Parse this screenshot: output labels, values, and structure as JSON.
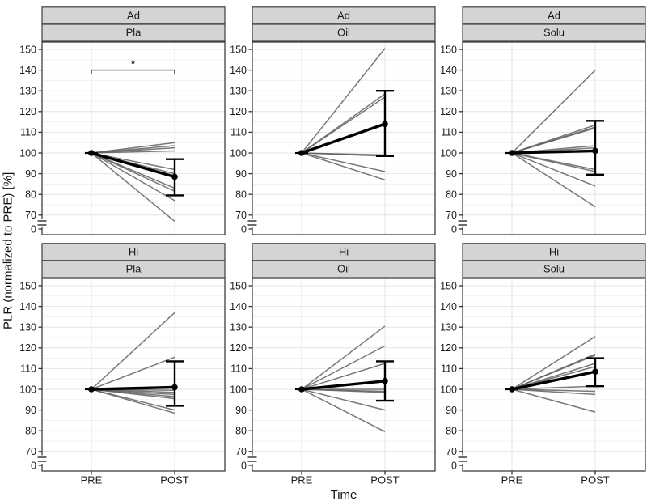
{
  "figure": {
    "y_axis_title": "PLR (normalized to PRE) [%]",
    "x_axis_title": "Time",
    "x_categories": [
      "PRE",
      "POST"
    ],
    "y_ticks": [
      "150",
      "140",
      "130",
      "120",
      "110",
      "100",
      "90",
      "80",
      "70",
      "0"
    ],
    "colors": {
      "strip_bg": "#d4d4d4",
      "strip_border": "#3f3f3f",
      "panel_border": "#3f3f3f",
      "grid_major": "#e4e4e4",
      "grid_minor": "#f1f1f1",
      "individual_line": "#606060",
      "mean_line": "#000000",
      "tick_text": "#1a1a1a"
    }
  },
  "chart_data": {
    "type": "line",
    "title": "",
    "xlabel": "Time",
    "ylabel": "PLR (normalized to PRE) [%]",
    "x": [
      "PRE",
      "POST"
    ],
    "y_axis": {
      "ticks": [
        150,
        140,
        130,
        120,
        110,
        100,
        90,
        80,
        70,
        0
      ],
      "display_range": [
        65,
        155
      ],
      "axis_break_between": [
        0,
        65
      ],
      "grid": "on"
    },
    "layout": "facet grid 2 rows (Ad, Hi) x 3 columns (Pla, Oil, Solu); every individual line starts at PRE = 100; thick black line = mean with error bars at POST",
    "pre_value": 100,
    "facets": [
      {
        "row": "Ad",
        "col": "Pla",
        "individual_post": [
          105,
          103.5,
          102.5,
          101,
          92,
          90,
          83,
          81.5,
          77,
          67
        ],
        "mean_post": 88.5,
        "error_bar": [
          79.5,
          97
        ],
        "significance": "*",
        "significance_y": 140
      },
      {
        "row": "Ad",
        "col": "Oil",
        "individual_post": [
          150.5,
          128.5,
          127,
          99,
          98.5,
          91,
          87
        ],
        "mean_post": 114,
        "error_bar": [
          98.5,
          130
        ],
        "significance": null
      },
      {
        "row": "Ad",
        "col": "Solu",
        "individual_post": [
          140,
          113.5,
          112.5,
          112,
          103.5,
          102.5,
          92,
          91,
          84,
          74
        ],
        "mean_post": 101,
        "error_bar": [
          89.5,
          115.5
        ],
        "significance": null
      },
      {
        "row": "Hi",
        "col": "Pla",
        "individual_post": [
          137,
          115.5,
          99.5,
          98.5,
          97.5,
          96.5,
          95.5,
          90,
          88.5
        ],
        "mean_post": 101,
        "error_bar": [
          92,
          113.5
        ],
        "significance": null
      },
      {
        "row": "Hi",
        "col": "Oil",
        "individual_post": [
          130.5,
          121,
          112.5,
          100,
          99,
          98.5,
          90,
          79.5
        ],
        "mean_post": 104,
        "error_bar": [
          94.5,
          113.5
        ],
        "significance": null
      },
      {
        "row": "Hi",
        "col": "Solu",
        "individual_post": [
          125.5,
          117,
          116.5,
          112.5,
          111,
          101.5,
          99,
          97.5,
          89
        ],
        "mean_post": 108.5,
        "error_bar": [
          101.5,
          115
        ],
        "significance": null
      }
    ]
  }
}
